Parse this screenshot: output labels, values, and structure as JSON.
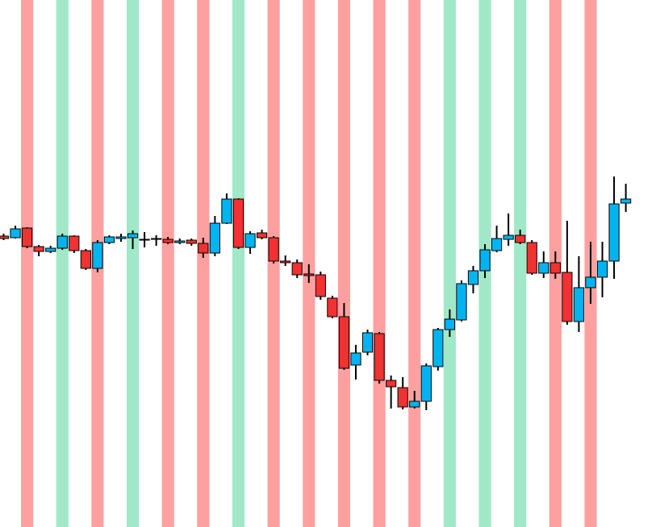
{
  "chart_data": {
    "type": "candlestick",
    "open": [
      361,
      359,
      371,
      348,
      342,
      346,
      361,
      343,
      321,
      353,
      358,
      359,
      357,
      357,
      357,
      353,
      356,
      352,
      340,
      377,
      407,
      347,
      365,
      359,
      330,
      328,
      314,
      313,
      284,
      261,
      201,
      217,
      240,
      182,
      173,
      149,
      156,
      199,
      245,
      257,
      301,
      318,
      343,
      357,
      362,
      353,
      315,
      328,
      316,
      255,
      297,
      310,
      330,
      402
    ],
    "high": [
      364,
      374,
      372,
      350,
      349,
      364,
      362,
      345,
      356,
      362,
      364,
      368,
      366,
      362,
      360,
      358,
      358,
      359,
      386,
      414,
      408,
      367,
      369,
      361,
      337,
      332,
      326,
      317,
      287,
      278,
      226,
      245,
      242,
      188,
      186,
      169,
      203,
      247,
      270,
      306,
      324,
      351,
      374,
      389,
      369,
      356,
      342,
      342,
      380,
      336,
      354,
      354,
      435,
      426
    ],
    "low": [
      356,
      358,
      346,
      336,
      340,
      344,
      340,
      319,
      316,
      351,
      354,
      345,
      347,
      349,
      351,
      351,
      349,
      334,
      336,
      376,
      345,
      339,
      357,
      327,
      324,
      309,
      303,
      282,
      259,
      195,
      183,
      213,
      178,
      147,
      146,
      147,
      145,
      194,
      236,
      255,
      290,
      309,
      341,
      349,
      351,
      313,
      309,
      308,
      251,
      242,
      277,
      285,
      308,
      391
    ],
    "close": [
      358,
      370,
      348,
      342,
      346,
      361,
      343,
      321,
      353,
      360,
      360,
      364,
      357,
      358,
      353,
      355,
      352,
      340,
      377,
      407,
      347,
      364,
      359,
      330,
      328,
      313,
      312,
      286,
      261,
      197,
      216,
      241,
      182,
      174,
      149,
      156,
      200,
      245,
      258,
      302,
      318,
      344,
      358,
      362,
      353,
      315,
      328,
      315,
      255,
      297,
      310,
      330,
      401,
      407
    ],
    "up_color": "#00b4f0",
    "down_color": "#f03232",
    "highlights": {
      "indices": [
        2,
        5,
        8,
        11,
        14,
        17,
        20,
        23,
        26,
        29,
        32,
        35,
        38,
        41,
        44,
        47,
        50
      ],
      "colors": [
        "#ffa0a0",
        "#a0e8c8",
        "#ffa0a0",
        "#a0e8c8",
        "#ffa0a0",
        "#ffa0a0",
        "#a0e8c8",
        "#ffa0a0",
        "#ffa0a0",
        "#ffa0a0",
        "#ffa0a0",
        "#ffa0a0",
        "#a0e8c8",
        "#a0e8c8",
        "#a0e8c8",
        "#ffa0a0",
        "#ffa0a0"
      ]
    },
    "xlim": [
      -0.309,
      55.57
    ],
    "ylim": [
      0,
      654
    ]
  }
}
